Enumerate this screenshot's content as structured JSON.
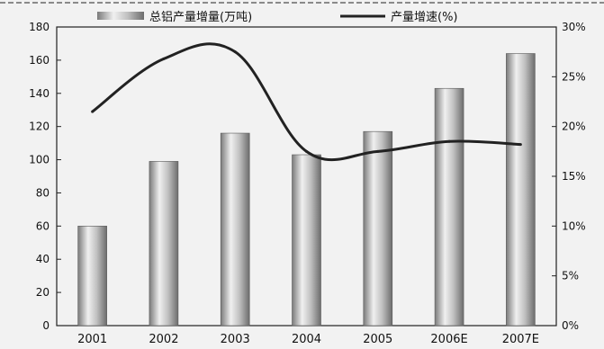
{
  "chart_data": {
    "type": "bar",
    "categories": [
      "2001",
      "2002",
      "2003",
      "2004",
      "2005",
      "2006E",
      "2007E"
    ],
    "series": [
      {
        "name": "总铝产量增量(万吨)",
        "type": "bar",
        "axis": "left",
        "values": [
          60,
          99,
          116,
          103,
          117,
          143,
          164
        ]
      },
      {
        "name": "产量增速(%)",
        "type": "line",
        "axis": "right",
        "values": [
          21.5,
          26.8,
          27.5,
          17.5,
          17.5,
          18.5,
          18.2
        ]
      }
    ],
    "y_left": {
      "ylim": [
        0,
        180
      ],
      "ticks": [
        "0",
        "20",
        "40",
        "60",
        "80",
        "100",
        "120",
        "140",
        "160",
        "180"
      ]
    },
    "y_right": {
      "ylim": [
        0,
        30
      ],
      "ticks": [
        "0%",
        "5%",
        "10%",
        "15%",
        "20%",
        "25%",
        "30%"
      ]
    },
    "legend_position": "top",
    "grid": false
  },
  "colors": {
    "background": "#f2f2f2",
    "bar_light": "#e8e8e8",
    "bar_mid": "#b0b0b0",
    "bar_dark": "#6c6c6c",
    "line": "#222222"
  }
}
